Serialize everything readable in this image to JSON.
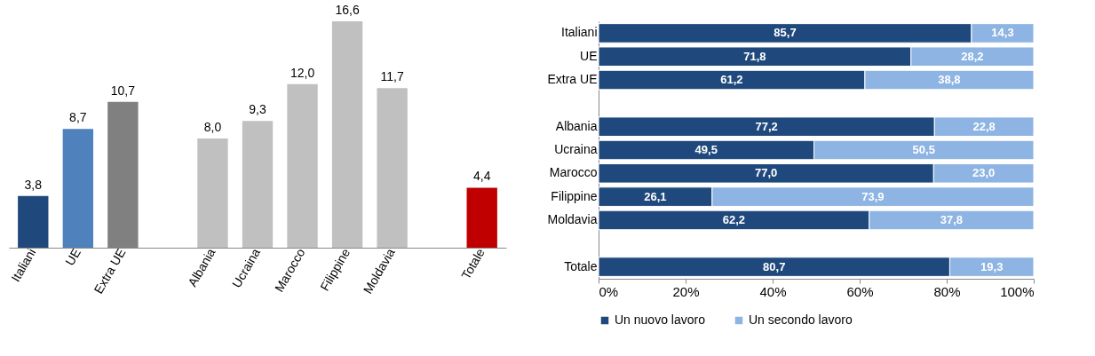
{
  "chart_data": [
    {
      "type": "bar",
      "categories": [
        "Italiani",
        "UE",
        "Extra UE",
        null,
        "Albania",
        "Ucraina",
        "Marocco",
        "Filippine",
        "Moldavia",
        null,
        "Totale"
      ],
      "values": [
        3.8,
        8.7,
        10.7,
        null,
        8.0,
        9.3,
        12.0,
        16.6,
        11.7,
        null,
        4.4
      ],
      "colors": [
        "#1f497d",
        "#4f81bd",
        "#808080",
        null,
        "#c0c0c0",
        "#c0c0c0",
        "#c0c0c0",
        "#c0c0c0",
        "#c0c0c0",
        null,
        "#c00000"
      ],
      "value_labels": [
        "3,8",
        "8,7",
        "10,7",
        null,
        "8,0",
        "9,3",
        "12,0",
        "16,6",
        "11,7",
        null,
        "4,4"
      ],
      "tick_labels": "x",
      "grid": false
    },
    {
      "type": "bar",
      "orientation": "horizontal",
      "stacked": true,
      "categories": [
        "Italiani",
        "UE",
        "Extra UE",
        null,
        "Albania",
        "Ucraina",
        "Marocco",
        "Filippine",
        "Moldavia",
        null,
        "Totale"
      ],
      "series": [
        {
          "name": "Un nuovo lavoro",
          "color": "#1f497d",
          "values": [
            85.7,
            71.8,
            61.2,
            null,
            77.2,
            49.5,
            77.0,
            26.1,
            62.2,
            null,
            80.7
          ],
          "value_labels": [
            "85,7",
            "71,8",
            "61,2",
            null,
            "77,2",
            "49,5",
            "77,0",
            "26,1",
            "62,2",
            null,
            "80,7"
          ]
        },
        {
          "name": "Un secondo lavoro",
          "color": "#8db4e2",
          "values": [
            14.3,
            28.2,
            38.8,
            null,
            22.8,
            50.5,
            23.0,
            73.9,
            37.8,
            null,
            19.3
          ],
          "value_labels": [
            "14,3",
            "28,2",
            "38,8",
            null,
            "22,8",
            "50,5",
            "23,0",
            "73,9",
            "37,8",
            null,
            "19,3"
          ]
        }
      ],
      "xlim": [
        0,
        100
      ],
      "xticks": [
        {
          "value": 0,
          "label": "0%"
        },
        {
          "value": 20,
          "label": "20%"
        },
        {
          "value": 40,
          "label": "40%"
        },
        {
          "value": 60,
          "label": "60%"
        },
        {
          "value": 80,
          "label": "80%"
        },
        {
          "value": 100,
          "label": "100%"
        }
      ],
      "grid": false,
      "legend": "bottom"
    }
  ]
}
